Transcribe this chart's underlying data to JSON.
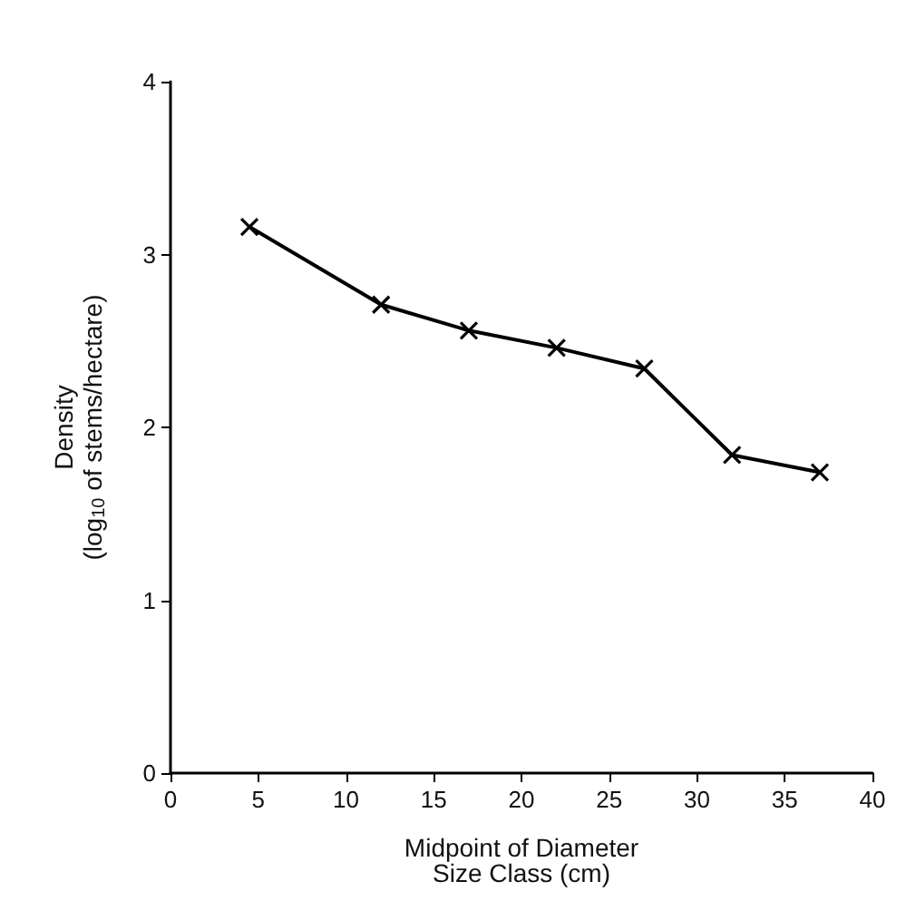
{
  "chart_data": {
    "type": "line",
    "xlabel": "Midpoint of Diameter\nSize Class (cm)",
    "ylabel": "Density\n(log$_{10}$ of stems/hectare)",
    "x": [
      4.5,
      12,
      17,
      22,
      27,
      32,
      37
    ],
    "series": [
      {
        "color": "#000000",
        "values": [
          3.16,
          2.71,
          2.56,
          2.46,
          2.34,
          1.84,
          1.74
        ]
      }
    ],
    "xlim": [
      0,
      40
    ],
    "xticks": [
      0,
      5,
      10,
      15,
      20,
      25,
      30,
      35,
      40
    ],
    "ylim": [
      0,
      4
    ],
    "yticks": [
      0,
      1,
      2,
      3,
      4
    ],
    "grid": false,
    "marker": "cross",
    "line_style": "solid"
  }
}
